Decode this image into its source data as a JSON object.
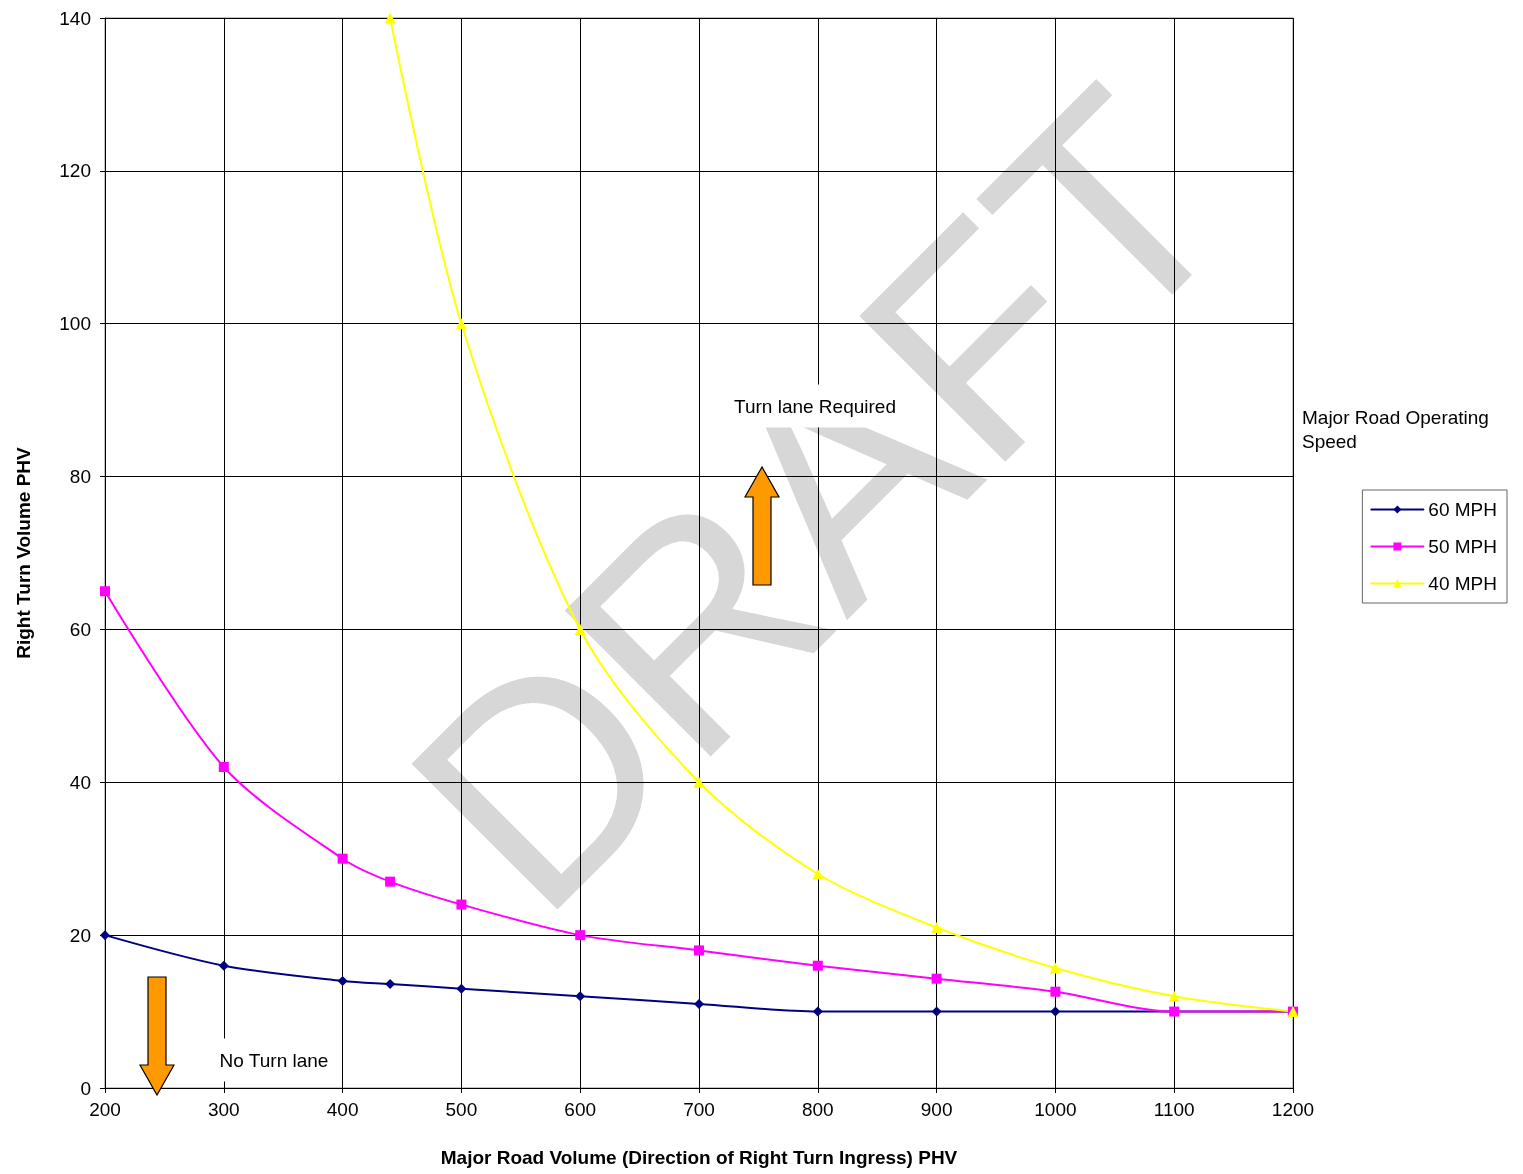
{
  "chart_data": {
    "type": "line",
    "xlabel": "Major Road Volume (Direction of Right Turn Ingress) PHV",
    "ylabel": "Right Turn Volume PHV",
    "legend_title": "Major Road Operating Speed",
    "x": [
      200,
      300,
      400,
      440,
      500,
      600,
      700,
      800,
      900,
      1000,
      1100,
      1200
    ],
    "series": [
      {
        "name": "60 MPH",
        "color": "#000080",
        "marker": "diamond",
        "values": [
          20,
          16,
          14,
          13.6,
          13,
          12,
          11,
          10,
          10,
          10,
          10,
          10
        ]
      },
      {
        "name": "50 MPH",
        "color": "#ff00ff",
        "marker": "square",
        "values": [
          65,
          42,
          30,
          27,
          24,
          20,
          18,
          16,
          14.3,
          12.6,
          10,
          10
        ]
      },
      {
        "name": "40 MPH",
        "color": "#ffff00",
        "marker": "triangle",
        "x": [
          440,
          500,
          600,
          700,
          800,
          900,
          1000,
          1100,
          1200
        ],
        "values": [
          140,
          100,
          60,
          40,
          28,
          21,
          15.7,
          12,
          10
        ]
      }
    ],
    "xlim": [
      200,
      1200
    ],
    "xticks": [
      200,
      300,
      400,
      500,
      600,
      700,
      800,
      900,
      1000,
      1100,
      1200
    ],
    "ylim": [
      0,
      140
    ],
    "yticks": [
      0,
      20,
      40,
      60,
      80,
      100,
      120,
      140
    ],
    "grid": true,
    "legend": "right",
    "line_style": "solid",
    "annotations": [
      "Turn lane Required",
      "No Turn lane",
      "DRAFT"
    ]
  }
}
